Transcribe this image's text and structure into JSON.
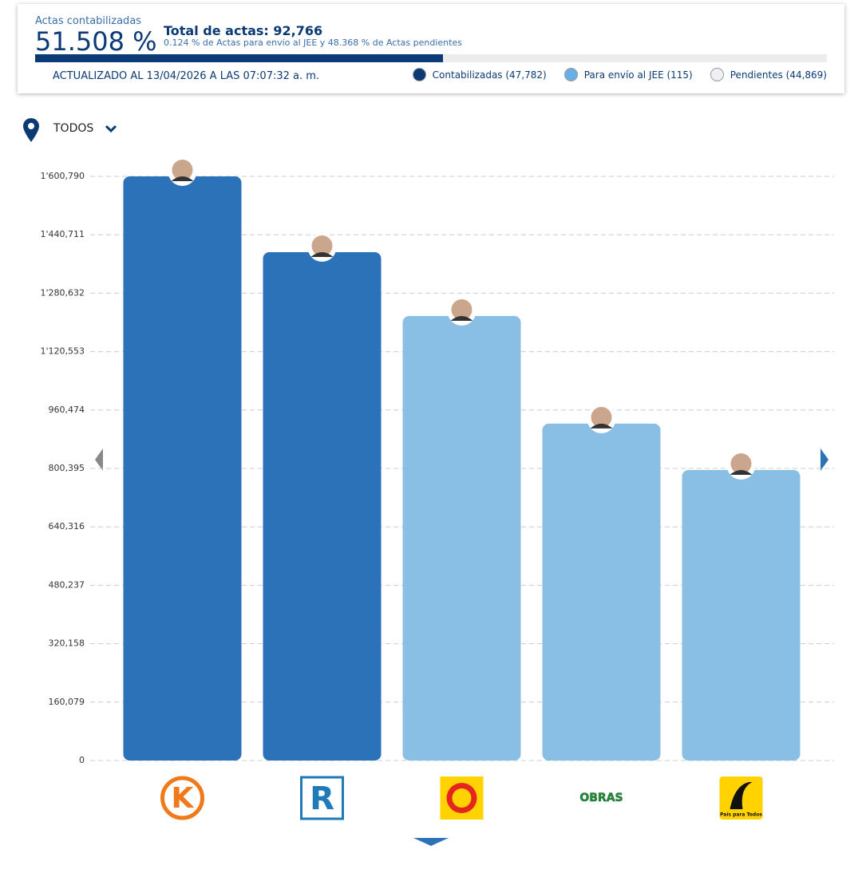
{
  "header": {
    "label": "Actas contabilizadas",
    "progress": {
      "value": 51.508,
      "label": "51.508 %"
    },
    "total": "Total de actas: 92,766",
    "detail": "0.124 % de Actas para envío al JEE y 48.368 % de Actas pendientes",
    "updated": "ACTUALIZADO AL 13/04/2026 A LAS 07:07:32 a. m.",
    "legend": [
      {
        "name": "Contabilizadas (47,782)",
        "color": "#0b3a75"
      },
      {
        "name": "Para envío al JEE (115)",
        "color": "#6aaee6"
      },
      {
        "name": "Pendientes (44,869)",
        "color": "#eef0f4"
      }
    ]
  },
  "filter": "TODOS",
  "chart_data": {
    "type": "bar",
    "categories": [
      "K",
      "R",
      null,
      "OBRAS",
      "País para Todos"
    ],
    "values": [
      1600790,
      1393000,
      1218000,
      923000,
      796000
    ],
    "colors": [
      "#2b72b9",
      "#2b72b9",
      "#89bfe4",
      "#89bfe4",
      "#89bfe4"
    ],
    "ylim": [
      0,
      1600790
    ],
    "yticks": [
      0,
      {
        "value": 160079,
        "label": "160,079"
      },
      {
        "value": 320158,
        "label": "320,158"
      },
      {
        "value": 480237,
        "label": "480,237"
      },
      {
        "value": 640316,
        "label": "640,316"
      },
      {
        "value": 800395,
        "label": "800,395"
      },
      {
        "value": 960474,
        "label": "960,474"
      },
      {
        "value": 1120553,
        "label": "1'120,553"
      },
      {
        "value": 1280632,
        "label": "1'280,632"
      },
      {
        "value": 1440711,
        "label": "1'440,711"
      },
      {
        "value": 1600790,
        "label": "1'600,790"
      }
    ],
    "grid": true
  }
}
